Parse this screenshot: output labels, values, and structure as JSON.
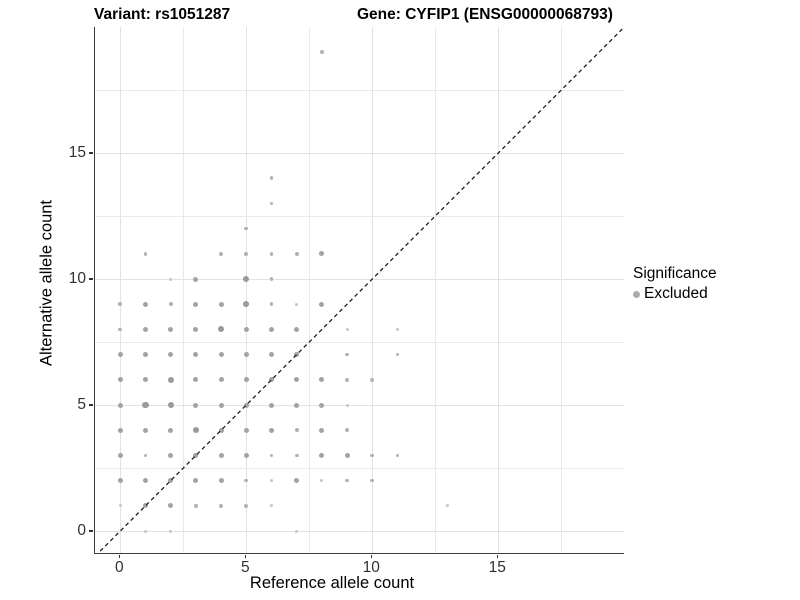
{
  "titles": {
    "left": "Variant: rs1051287",
    "right": "Gene: CYFIP1 (ENSG00000068793)"
  },
  "legend": {
    "title": "Significance",
    "items": [
      {
        "label": "Excluded",
        "color": "#ababab"
      }
    ]
  },
  "chart_data": {
    "type": "scatter",
    "title_left": "Variant: rs1051287",
    "title_right": "Gene: CYFIP1 (ENSG00000068793)",
    "xlabel": "Reference allele count",
    "ylabel": "Alternative allele count",
    "xlim": [
      -1,
      20
    ],
    "ylim": [
      -1,
      20
    ],
    "x_ticks": [
      0,
      5,
      10,
      15
    ],
    "y_ticks": [
      0,
      5,
      10,
      15
    ],
    "grid_major": [
      0,
      5,
      10,
      15
    ],
    "grid_minor": [
      2.5,
      7.5,
      12.5,
      17.5
    ],
    "grid_on": true,
    "legend_position": "right",
    "identity_line": {
      "style": "dashed",
      "color": "#1f1f1f",
      "slope": 1,
      "intercept": 0
    },
    "point_color": "#a3a3a3",
    "size_classes": {
      "1": {
        "r": 1.5,
        "color": "#c6c6c6"
      },
      "2": {
        "r": 1.9,
        "color": "#b2b2b2"
      },
      "3": {
        "r": 2.5,
        "color": "#a3a3a3"
      },
      "4": {
        "r": 3.1,
        "color": "#9a9a9a"
      }
    },
    "series": [
      {
        "name": "Excluded",
        "points": [
          [
            1,
            0,
            1
          ],
          [
            2,
            0,
            1
          ],
          [
            7,
            0,
            1
          ],
          [
            0,
            1,
            1
          ],
          [
            1,
            1,
            3
          ],
          [
            2,
            1,
            3
          ],
          [
            3,
            1,
            2
          ],
          [
            4,
            1,
            2
          ],
          [
            5,
            1,
            2
          ],
          [
            6,
            1,
            1
          ],
          [
            13,
            1,
            1
          ],
          [
            0,
            2,
            3
          ],
          [
            1,
            2,
            3
          ],
          [
            2,
            2,
            3
          ],
          [
            3,
            2,
            3
          ],
          [
            4,
            2,
            3
          ],
          [
            5,
            2,
            2
          ],
          [
            6,
            2,
            1
          ],
          [
            7,
            2,
            3
          ],
          [
            8,
            2,
            1
          ],
          [
            9,
            2,
            2
          ],
          [
            10,
            2,
            2
          ],
          [
            0,
            3,
            3
          ],
          [
            1,
            3,
            2
          ],
          [
            2,
            3,
            3
          ],
          [
            3,
            3,
            3
          ],
          [
            4,
            3,
            3
          ],
          [
            5,
            3,
            3
          ],
          [
            6,
            3,
            2
          ],
          [
            7,
            3,
            2
          ],
          [
            8,
            3,
            3
          ],
          [
            9,
            3,
            3
          ],
          [
            10,
            3,
            2
          ],
          [
            11,
            3,
            2
          ],
          [
            0,
            4,
            3
          ],
          [
            1,
            4,
            3
          ],
          [
            2,
            4,
            3
          ],
          [
            3,
            4,
            4
          ],
          [
            4,
            4,
            3
          ],
          [
            5,
            4,
            3
          ],
          [
            6,
            4,
            3
          ],
          [
            7,
            4,
            2
          ],
          [
            8,
            4,
            3
          ],
          [
            9,
            4,
            2
          ],
          [
            0,
            5,
            3
          ],
          [
            1,
            5,
            4
          ],
          [
            2,
            5,
            4
          ],
          [
            3,
            5,
            3
          ],
          [
            4,
            5,
            3
          ],
          [
            5,
            5,
            3
          ],
          [
            6,
            5,
            3
          ],
          [
            7,
            5,
            3
          ],
          [
            8,
            5,
            3
          ],
          [
            9,
            5,
            1
          ],
          [
            0,
            6,
            3
          ],
          [
            1,
            6,
            3
          ],
          [
            2,
            6,
            4
          ],
          [
            3,
            6,
            3
          ],
          [
            4,
            6,
            3
          ],
          [
            5,
            6,
            3
          ],
          [
            6,
            6,
            3
          ],
          [
            7,
            6,
            3
          ],
          [
            8,
            6,
            3
          ],
          [
            9,
            6,
            2
          ],
          [
            10,
            6,
            2
          ],
          [
            0,
            7,
            3
          ],
          [
            1,
            7,
            3
          ],
          [
            2,
            7,
            3
          ],
          [
            3,
            7,
            3
          ],
          [
            4,
            7,
            3
          ],
          [
            5,
            7,
            3
          ],
          [
            6,
            7,
            3
          ],
          [
            7,
            7,
            3
          ],
          [
            9,
            7,
            2
          ],
          [
            11,
            7,
            2
          ],
          [
            0,
            8,
            2
          ],
          [
            1,
            8,
            3
          ],
          [
            2,
            8,
            3
          ],
          [
            3,
            8,
            3
          ],
          [
            4,
            8,
            4
          ],
          [
            5,
            8,
            3
          ],
          [
            6,
            8,
            3
          ],
          [
            7,
            8,
            3
          ],
          [
            9,
            8,
            1
          ],
          [
            11,
            8,
            1
          ],
          [
            0,
            9,
            2
          ],
          [
            1,
            9,
            3
          ],
          [
            2,
            9,
            2
          ],
          [
            3,
            9,
            3
          ],
          [
            4,
            9,
            3
          ],
          [
            5,
            9,
            4
          ],
          [
            6,
            9,
            2
          ],
          [
            7,
            9,
            1
          ],
          [
            8,
            9,
            3
          ],
          [
            2,
            10,
            1
          ],
          [
            3,
            10,
            3
          ],
          [
            5,
            10,
            4
          ],
          [
            6,
            10,
            2
          ],
          [
            1,
            11,
            2
          ],
          [
            4,
            11,
            2
          ],
          [
            5,
            11,
            2
          ],
          [
            6,
            11,
            2
          ],
          [
            7,
            11,
            2
          ],
          [
            8,
            11,
            3
          ],
          [
            5,
            12,
            2
          ],
          [
            6,
            13,
            2
          ],
          [
            6,
            14,
            2
          ],
          [
            8,
            19,
            2
          ]
        ]
      }
    ]
  }
}
